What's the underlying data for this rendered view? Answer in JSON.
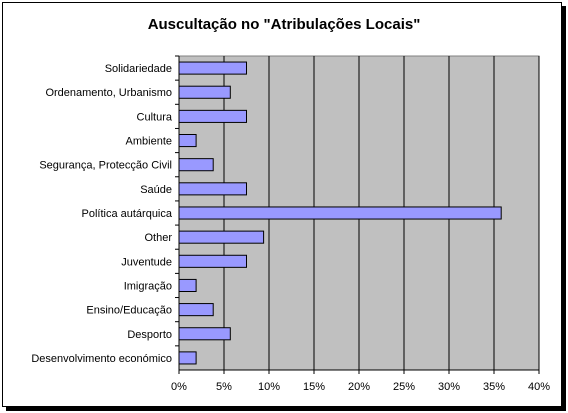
{
  "chart_data": {
    "type": "bar",
    "orientation": "horizontal",
    "title": "Auscultação no \"Atribulações Locais\"",
    "categories": [
      "Solidariedade",
      "Ordenamento, Urbanismo",
      "Cultura",
      "Ambiente",
      "Segurança, Protecção Civil",
      "Saúde",
      "Política autárquica",
      "Other",
      "Juventude",
      "Imigração",
      "Ensino/Educação",
      "Desporto",
      "Desenvolvimento económico"
    ],
    "values": [
      7.5,
      5.7,
      7.5,
      1.9,
      3.8,
      7.5,
      35.8,
      9.4,
      7.5,
      1.9,
      3.8,
      5.7,
      1.9
    ],
    "xlim": [
      0,
      40
    ],
    "ticks": [
      "0%",
      "5%",
      "10%",
      "15%",
      "20%",
      "25%",
      "30%",
      "35%",
      "40%"
    ],
    "tick_values": [
      0,
      5,
      10,
      15,
      20,
      25,
      30,
      35,
      40
    ],
    "grid": true,
    "colors": {
      "bar_fill": "#9999ff",
      "bar_stroke": "#000000",
      "plot_bg": "#c0c0c0",
      "grid": "#000000"
    }
  }
}
